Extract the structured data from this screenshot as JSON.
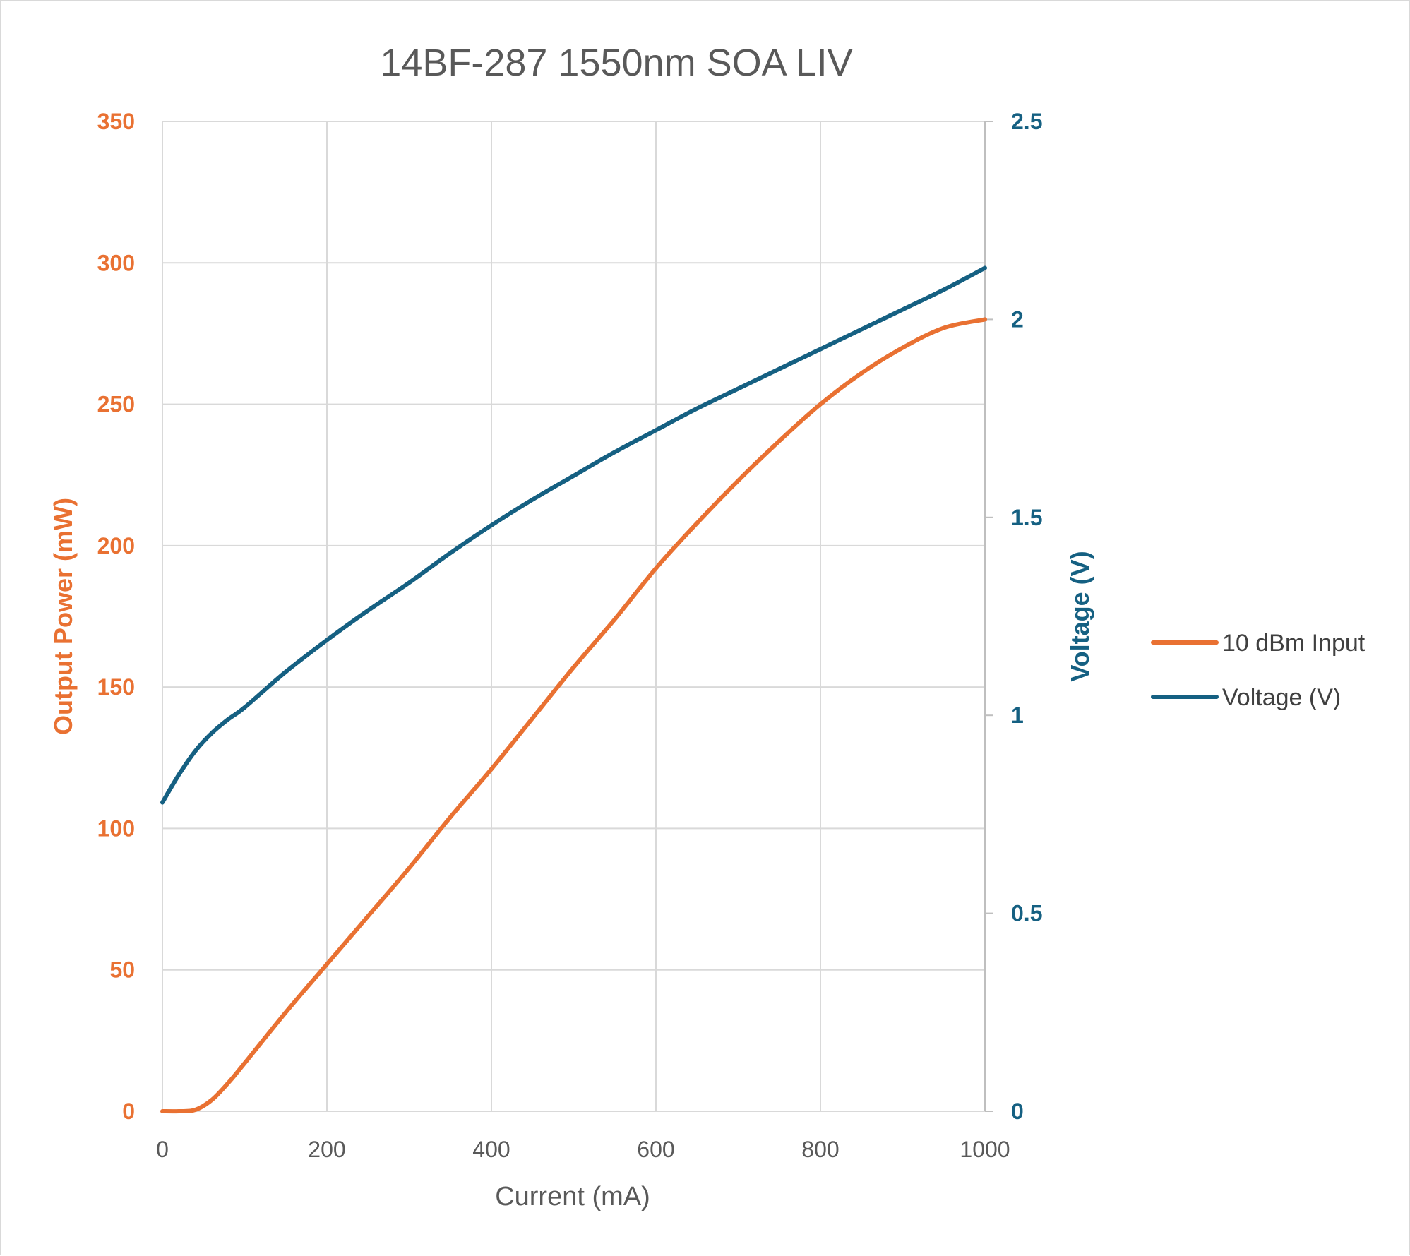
{
  "chart_data": {
    "type": "line",
    "title": "14BF-287 1550nm SOA LIV",
    "xlabel": "Current (mA)",
    "ylabel": "Output Power (mW)",
    "y2label": "Voltage (V)",
    "xlim": [
      0,
      1000
    ],
    "ylim": [
      0,
      350
    ],
    "y2lim": [
      0,
      2.5
    ],
    "xticks": [
      "0",
      "200",
      "400",
      "600",
      "800",
      "1000"
    ],
    "yticks": [
      "0",
      "50",
      "100",
      "150",
      "200",
      "250",
      "300",
      "350"
    ],
    "y2ticks": [
      "0",
      "0.5",
      "1",
      "1.5",
      "2",
      "2.5"
    ],
    "grid": true,
    "legend_position": "right",
    "series": [
      {
        "name": "10 dBm Input",
        "axis": "left",
        "color": "#e97132",
        "x": [
          0,
          20,
          40,
          60,
          80,
          100,
          150,
          200,
          250,
          300,
          350,
          400,
          450,
          500,
          550,
          600,
          650,
          700,
          750,
          800,
          850,
          900,
          950,
          1000
        ],
        "y": [
          0,
          0,
          0.5,
          4,
          10,
          17,
          35,
          52,
          69,
          86,
          104,
          121,
          139,
          157,
          174,
          192,
          208,
          223,
          237,
          250,
          261,
          270,
          277,
          280
        ]
      },
      {
        "name": "Voltage (V)",
        "axis": "right",
        "color": "#156082",
        "x": [
          0,
          20,
          40,
          60,
          80,
          100,
          150,
          200,
          250,
          300,
          350,
          400,
          450,
          500,
          550,
          600,
          650,
          700,
          750,
          800,
          850,
          900,
          950,
          1000
        ],
        "y": [
          0.78,
          0.85,
          0.91,
          0.955,
          0.99,
          1.02,
          1.11,
          1.19,
          1.265,
          1.335,
          1.41,
          1.48,
          1.545,
          1.605,
          1.665,
          1.72,
          1.775,
          1.825,
          1.875,
          1.925,
          1.975,
          2.025,
          2.075,
          2.13
        ]
      }
    ]
  }
}
